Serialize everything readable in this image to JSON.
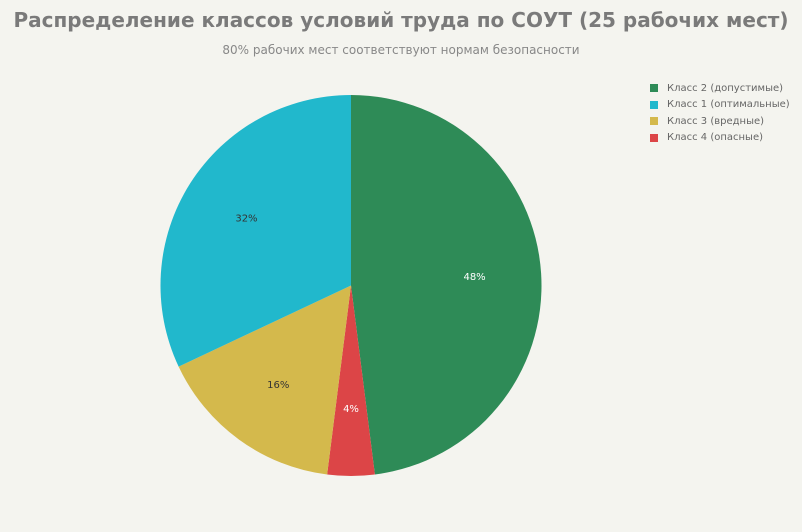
{
  "chart_data": {
    "type": "pie",
    "title": "Распределение классов условий труда по СОУТ (25 рабочих мест)",
    "subtitle": "80% рабочих мест соответствуют нормам безопасности",
    "legend_position": "top-right",
    "start_angle_deg": 0,
    "direction": "clockwise",
    "slices": [
      {
        "name": "Класс 2 (допустимые)",
        "value": 48,
        "label": "48%",
        "color": "#2e8b57",
        "label_color": "#ffffff"
      },
      {
        "name": "Класс 4 (опасные)",
        "value": 4,
        "label": "4%",
        "color": "#dc4547",
        "label_color": "#ffffff"
      },
      {
        "name": "Класс 3 (вредные)",
        "value": 16,
        "label": "16%",
        "color": "#d4b94c",
        "label_color": "#333333"
      },
      {
        "name": "Класс 1 (оптимальные)",
        "value": 32,
        "label": "32%",
        "color": "#21b8cc",
        "label_color": "#333333"
      }
    ],
    "legend": [
      {
        "label": "Класс 2 (допустимые)",
        "color": "#2e8b57"
      },
      {
        "label": "Класс 1 (оптимальные)",
        "color": "#21b8cc"
      },
      {
        "label": "Класс 3 (вредные)",
        "color": "#d4b94c"
      },
      {
        "label": "Класс 4 (опасные)",
        "color": "#dc4547"
      }
    ]
  }
}
